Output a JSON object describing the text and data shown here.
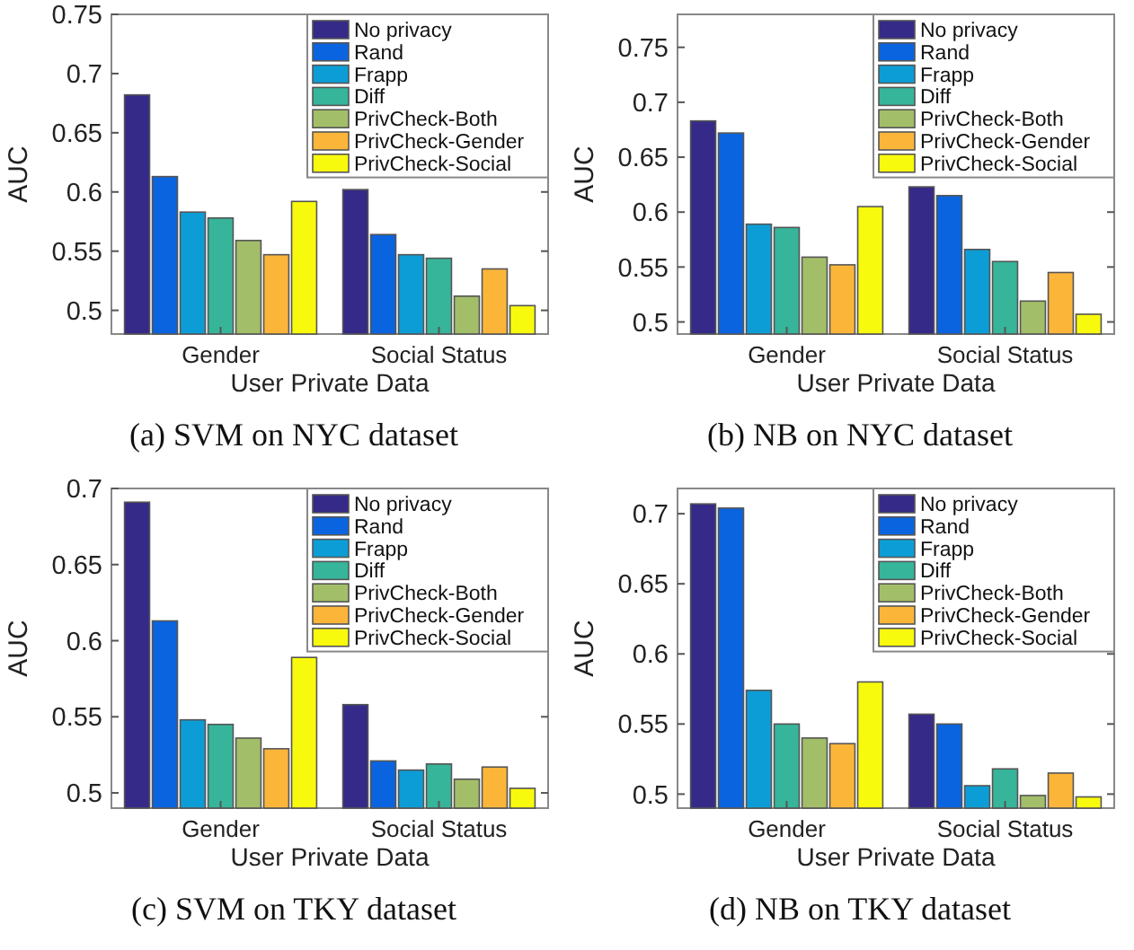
{
  "chart_data": [
    {
      "type": "bar",
      "title": "(a)  SVM on NYC dataset",
      "xlabel": "User Private Data",
      "ylabel": "AUC",
      "categories": [
        "Gender",
        "Social Status"
      ],
      "ylim": [
        0.48,
        0.75
      ],
      "yticks": [
        0.5,
        0.55,
        0.6,
        0.65,
        0.7,
        0.75
      ],
      "legend": "top right",
      "series": [
        {
          "name": "No privacy",
          "color": "#352a87",
          "values": [
            0.682,
            0.602
          ]
        },
        {
          "name": "Rand",
          "color": "#0a64e0",
          "values": [
            0.613,
            0.564
          ]
        },
        {
          "name": "Frapp",
          "color": "#0d9dd6",
          "values": [
            0.583,
            0.547
          ]
        },
        {
          "name": "Diff",
          "color": "#36b59a",
          "values": [
            0.578,
            0.544
          ]
        },
        {
          "name": "PrivCheck-Both",
          "color": "#a3be69",
          "values": [
            0.559,
            0.512
          ]
        },
        {
          "name": "PrivCheck-Gender",
          "color": "#fbb63a",
          "values": [
            0.547,
            0.535
          ]
        },
        {
          "name": "PrivCheck-Social",
          "color": "#f8fa0d",
          "values": [
            0.592,
            0.504
          ]
        }
      ]
    },
    {
      "type": "bar",
      "title": "(b)  NB on NYC dataset",
      "xlabel": "User Private Data",
      "ylabel": "AUC",
      "categories": [
        "Gender",
        "Social Status"
      ],
      "ylim": [
        0.489,
        0.78
      ],
      "yticks": [
        0.5,
        0.55,
        0.6,
        0.65,
        0.7,
        0.75
      ],
      "legend": "top right",
      "series": [
        {
          "name": "No privacy",
          "color": "#352a87",
          "values": [
            0.683,
            0.623
          ]
        },
        {
          "name": "Rand",
          "color": "#0a64e0",
          "values": [
            0.672,
            0.615
          ]
        },
        {
          "name": "Frapp",
          "color": "#0d9dd6",
          "values": [
            0.589,
            0.566
          ]
        },
        {
          "name": "Diff",
          "color": "#36b59a",
          "values": [
            0.586,
            0.555
          ]
        },
        {
          "name": "PrivCheck-Both",
          "color": "#a3be69",
          "values": [
            0.559,
            0.519
          ]
        },
        {
          "name": "PrivCheck-Gender",
          "color": "#fbb63a",
          "values": [
            0.552,
            0.545
          ]
        },
        {
          "name": "PrivCheck-Social",
          "color": "#f8fa0d",
          "values": [
            0.605,
            0.507
          ]
        }
      ]
    },
    {
      "type": "bar",
      "title": "(c)  SVM on TKY dataset",
      "xlabel": "User Private Data",
      "ylabel": "AUC",
      "categories": [
        "Gender",
        "Social Status"
      ],
      "ylim": [
        0.49,
        0.7
      ],
      "yticks": [
        0.5,
        0.55,
        0.6,
        0.65,
        0.7
      ],
      "legend": "top right",
      "series": [
        {
          "name": "No privacy",
          "color": "#352a87",
          "values": [
            0.691,
            0.558
          ]
        },
        {
          "name": "Rand",
          "color": "#0a64e0",
          "values": [
            0.613,
            0.521
          ]
        },
        {
          "name": "Frapp",
          "color": "#0d9dd6",
          "values": [
            0.548,
            0.515
          ]
        },
        {
          "name": "Diff",
          "color": "#36b59a",
          "values": [
            0.545,
            0.519
          ]
        },
        {
          "name": "PrivCheck-Both",
          "color": "#a3be69",
          "values": [
            0.536,
            0.509
          ]
        },
        {
          "name": "PrivCheck-Gender",
          "color": "#fbb63a",
          "values": [
            0.529,
            0.517
          ]
        },
        {
          "name": "PrivCheck-Social",
          "color": "#f8fa0d",
          "values": [
            0.589,
            0.503
          ]
        }
      ]
    },
    {
      "type": "bar",
      "title": "(d)  NB on TKY dataset",
      "xlabel": "User Private Data",
      "ylabel": "AUC",
      "categories": [
        "Gender",
        "Social Status"
      ],
      "ylim": [
        0.49,
        0.718
      ],
      "yticks": [
        0.5,
        0.55,
        0.6,
        0.65,
        0.7
      ],
      "legend": "top right",
      "series": [
        {
          "name": "No privacy",
          "color": "#352a87",
          "values": [
            0.707,
            0.557
          ]
        },
        {
          "name": "Rand",
          "color": "#0a64e0",
          "values": [
            0.704,
            0.55
          ]
        },
        {
          "name": "Frapp",
          "color": "#0d9dd6",
          "values": [
            0.574,
            0.506
          ]
        },
        {
          "name": "Diff",
          "color": "#36b59a",
          "values": [
            0.55,
            0.518
          ]
        },
        {
          "name": "PrivCheck-Both",
          "color": "#a3be69",
          "values": [
            0.54,
            0.499
          ]
        },
        {
          "name": "PrivCheck-Gender",
          "color": "#fbb63a",
          "values": [
            0.536,
            0.515
          ]
        },
        {
          "name": "PrivCheck-Social",
          "color": "#f8fa0d",
          "values": [
            0.58,
            0.498
          ]
        }
      ]
    }
  ]
}
